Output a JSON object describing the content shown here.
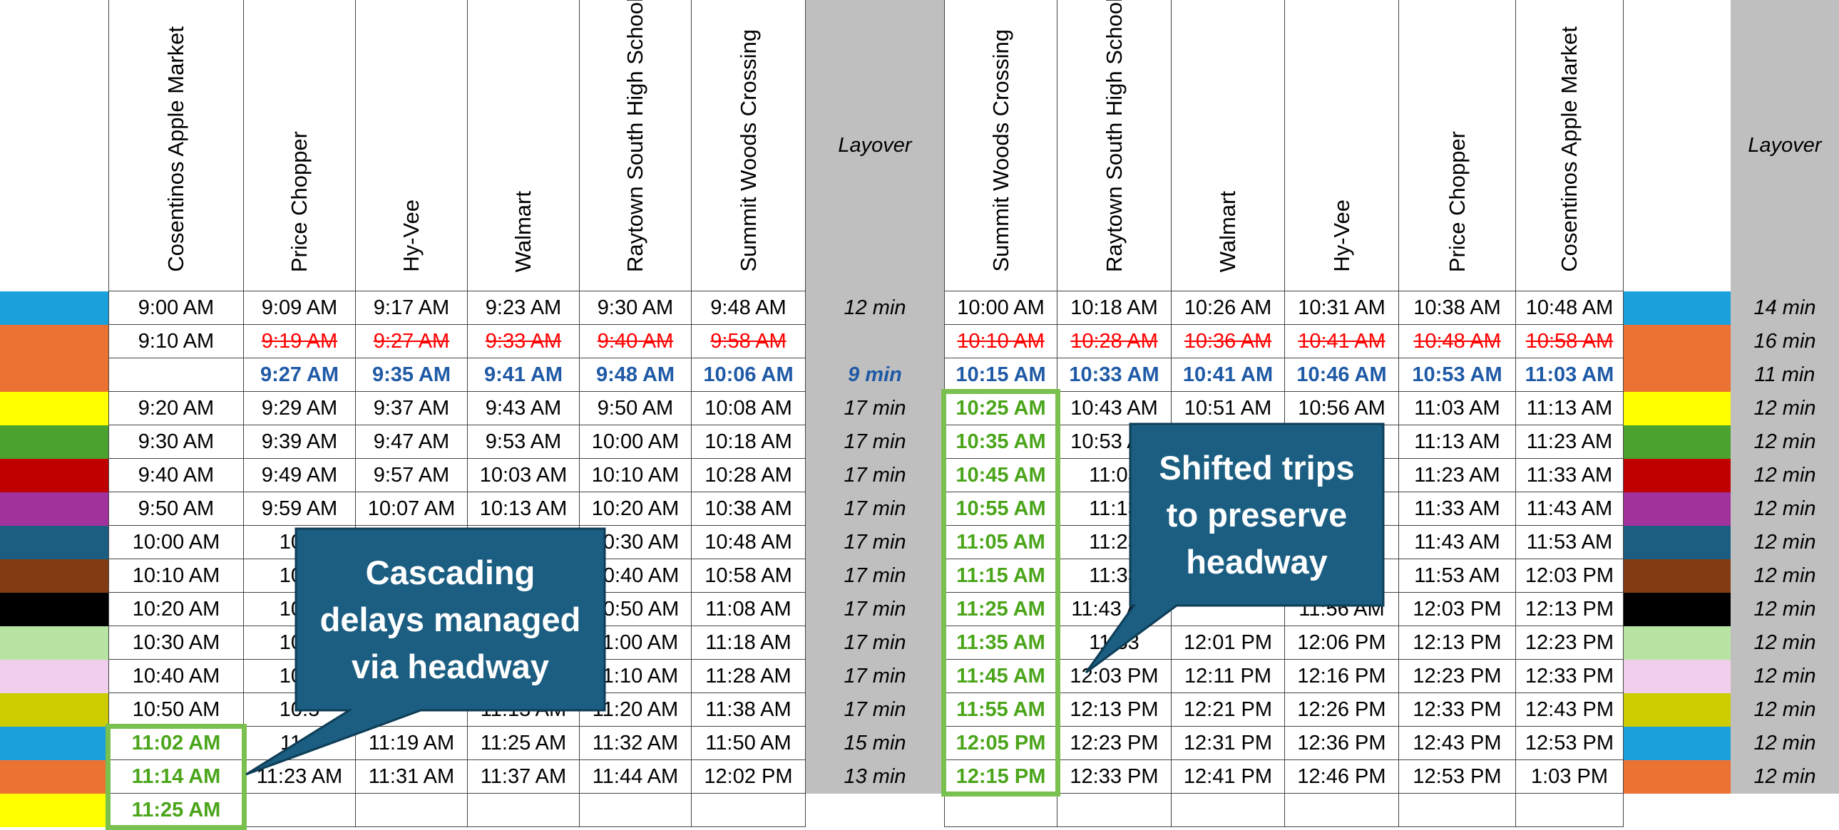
{
  "headers_out": [
    "Cosentinos Apple Market",
    "Price Chopper",
    "Hy-Vee",
    "Walmart",
    "Raytown South High School",
    "Summit Woods Crossing"
  ],
  "headers_in": [
    "Summit Woods Crossing",
    "Raytown South High School",
    "Walmart",
    "Hy-Vee",
    "Price Chopper",
    "Cosentinos Apple Market"
  ],
  "layover_label": "Layover",
  "rows": [
    {
      "color": "#1aa0db",
      "out": [
        "9:00 AM",
        "9:09 AM",
        "9:17 AM",
        "9:23 AM",
        "9:30 AM",
        "9:48 AM"
      ],
      "lay1": "12 min",
      "in": [
        "10:00 AM",
        "10:18 AM",
        "10:26 AM",
        "10:31 AM",
        "10:38 AM",
        "10:48 AM"
      ],
      "lay2": "14 min"
    },
    {
      "color": "#eb7232",
      "out": [
        "9:10 AM",
        "9:19 AM",
        "9:27 AM",
        "9:33 AM",
        "9:40 AM",
        "9:58 AM"
      ],
      "lay1": "",
      "in": [
        "10:10 AM",
        "10:28 AM",
        "10:36 AM",
        "10:41 AM",
        "10:48 AM",
        "10:58 AM"
      ],
      "lay2": "16 min"
    },
    {
      "color": "#eb7232",
      "out": [
        "",
        "9:27 AM",
        "9:35 AM",
        "9:41 AM",
        "9:48 AM",
        "10:06 AM"
      ],
      "lay1": "9 min",
      "in": [
        "10:15 AM",
        "10:33 AM",
        "10:41 AM",
        "10:46 AM",
        "10:53 AM",
        "11:03 AM"
      ],
      "lay2": "11 min"
    },
    {
      "color": "#ffff00",
      "out": [
        "9:20 AM",
        "9:29 AM",
        "9:37 AM",
        "9:43 AM",
        "9:50 AM",
        "10:08 AM"
      ],
      "lay1": "17 min",
      "in": [
        "10:25 AM",
        "10:43 AM",
        "10:51 AM",
        "10:56 AM",
        "11:03 AM",
        "11:13 AM"
      ],
      "lay2": "12 min"
    },
    {
      "color": "#4ca22f",
      "out": [
        "9:30 AM",
        "9:39 AM",
        "9:47 AM",
        "9:53 AM",
        "10:00 AM",
        "10:18 AM"
      ],
      "lay1": "17 min",
      "in": [
        "10:35 AM",
        "10:53 AM",
        "",
        "",
        "11:13 AM",
        "11:23 AM"
      ],
      "lay2": "12 min"
    },
    {
      "color": "#c00000",
      "out": [
        "9:40 AM",
        "9:49 AM",
        "9:57 AM",
        "10:03 AM",
        "10:10 AM",
        "10:28 AM"
      ],
      "lay1": "17 min",
      "in": [
        "10:45 AM",
        "11:03",
        "",
        "",
        "11:23 AM",
        "11:33 AM"
      ],
      "lay2": "12 min"
    },
    {
      "color": "#a1329d",
      "out": [
        "9:50 AM",
        "9:59 AM",
        "10:07 AM",
        "10:13 AM",
        "10:20 AM",
        "10:38 AM"
      ],
      "lay1": "17 min",
      "in": [
        "10:55 AM",
        "11:13",
        "",
        "",
        "11:33 AM",
        "11:43 AM"
      ],
      "lay2": "12 min"
    },
    {
      "color": "#1b5e82",
      "out": [
        "10:00 AM",
        "10:0",
        "",
        "",
        "10:30 AM",
        "10:48 AM"
      ],
      "lay1": "17 min",
      "in": [
        "11:05 AM",
        "11:23",
        "",
        "",
        "11:43 AM",
        "11:53 AM"
      ],
      "lay2": "12 min"
    },
    {
      "color": "#823b12",
      "out": [
        "10:10 AM",
        "10:1",
        "",
        "",
        "10:40 AM",
        "10:58 AM"
      ],
      "lay1": "17 min",
      "in": [
        "11:15 AM",
        "11:33",
        "",
        "",
        "11:53 AM",
        "12:03 PM"
      ],
      "lay2": "12 min"
    },
    {
      "color": "#000000",
      "out": [
        "10:20 AM",
        "10:2",
        "",
        "",
        "10:50 AM",
        "11:08 AM"
      ],
      "lay1": "17 min",
      "in": [
        "11:25 AM",
        "11:43 AM",
        "",
        "11:56 AM",
        "12:03 PM",
        "12:13 PM"
      ],
      "lay2": "12 min"
    },
    {
      "color": "#b7e4a3",
      "out": [
        "10:30 AM",
        "10:3",
        "",
        "",
        "11:00 AM",
        "11:18 AM"
      ],
      "lay1": "17 min",
      "in": [
        "11:35 AM",
        "11:53",
        "12:01 PM",
        "12:06 PM",
        "12:13 PM",
        "12:23 PM"
      ],
      "lay2": "12 min"
    },
    {
      "color": "#f1cfec",
      "out": [
        "10:40 AM",
        "10:4",
        "",
        "",
        "11:10 AM",
        "11:28 AM"
      ],
      "lay1": "17 min",
      "in": [
        "11:45 AM",
        "12:03 PM",
        "12:11 PM",
        "12:16 PM",
        "12:23 PM",
        "12:33 PM"
      ],
      "lay2": "12 min"
    },
    {
      "color": "#cccc00",
      "out": [
        "10:50 AM",
        "10:5",
        "",
        "11:13 AM",
        "11:20 AM",
        "11:38 AM"
      ],
      "lay1": "17 min",
      "in": [
        "11:55 AM",
        "12:13 PM",
        "12:21 PM",
        "12:26 PM",
        "12:33 PM",
        "12:43 PM"
      ],
      "lay2": "12 min"
    },
    {
      "color": "#1aa0db",
      "out": [
        "11:02 AM",
        "11:1",
        "11:19 AM",
        "11:25 AM",
        "11:32 AM",
        "11:50 AM"
      ],
      "lay1": "15 min",
      "in": [
        "12:05 PM",
        "12:23 PM",
        "12:31 PM",
        "12:36 PM",
        "12:43 PM",
        "12:53 PM"
      ],
      "lay2": "12 min"
    },
    {
      "color": "#eb7232",
      "out": [
        "11:14 AM",
        "11:23 AM",
        "11:31 AM",
        "11:37 AM",
        "11:44 AM",
        "12:02 PM"
      ],
      "lay1": "13 min",
      "in": [
        "12:15 PM",
        "12:33 PM",
        "12:41 PM",
        "12:46 PM",
        "12:53 PM",
        "1:03 PM"
      ],
      "lay2": "12 min"
    },
    {
      "color": "#ffff00",
      "out": [
        "11:25 AM",
        "",
        "",
        "",
        "",
        ""
      ],
      "lay1": "",
      "in": [
        "",
        "",
        "",
        "",
        "",
        ""
      ],
      "lay2": ""
    }
  ],
  "callouts": {
    "left": "Cascading\ndelays managed\nvia headway",
    "right": "Shifted trips\nto preserve\nheadway"
  }
}
